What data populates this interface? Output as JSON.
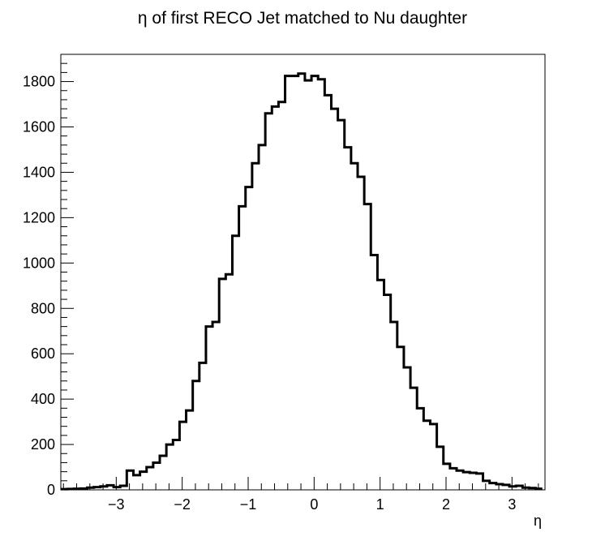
{
  "chart_data": {
    "type": "bar",
    "title": "η of first RECO Jet matched to Nu daughter",
    "xlabel": "η",
    "ylabel": "",
    "xlim": [
      -3.84,
      3.5
    ],
    "ylim": [
      0,
      1920
    ],
    "xticks": [
      -3,
      -2,
      -1,
      0,
      1,
      2,
      3
    ],
    "xtick_labels": [
      "−3",
      "−2",
      "−1",
      "0",
      "1",
      "2",
      "3"
    ],
    "yticks": [
      0,
      200,
      400,
      600,
      800,
      1000,
      1200,
      1400,
      1600,
      1800
    ],
    "ytick_labels": [
      "0",
      "200",
      "400",
      "600",
      "800",
      "1000",
      "1200",
      "1400",
      "1600",
      "1800"
    ],
    "bin_width": 0.1,
    "bin_edges_start": -3.84,
    "values": [
      3,
      4,
      5,
      6,
      10,
      12,
      15,
      20,
      12,
      18,
      85,
      65,
      80,
      100,
      120,
      150,
      200,
      220,
      300,
      350,
      480,
      560,
      720,
      740,
      930,
      950,
      1120,
      1250,
      1335,
      1440,
      1520,
      1660,
      1690,
      1710,
      1825,
      1825,
      1835,
      1805,
      1825,
      1810,
      1740,
      1680,
      1630,
      1510,
      1440,
      1380,
      1260,
      1035,
      925,
      860,
      740,
      630,
      540,
      450,
      360,
      305,
      290,
      190,
      115,
      95,
      85,
      78,
      75,
      72,
      40,
      30,
      25,
      22,
      15,
      18,
      10,
      8,
      5
    ],
    "grid": false,
    "legend": "none",
    "line_color": "#000000"
  }
}
